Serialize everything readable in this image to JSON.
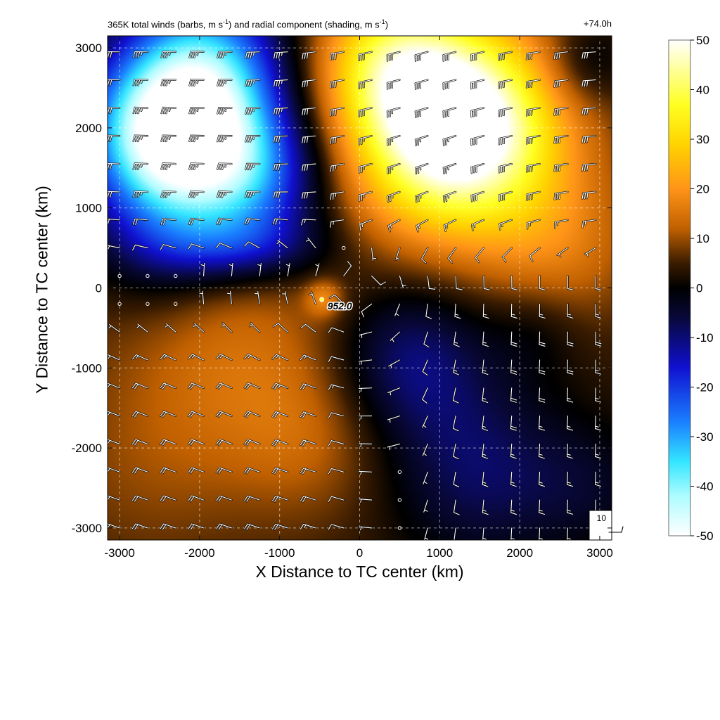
{
  "title": {
    "left_pre": "365K total winds (barbs, m s",
    "left_exp1": "-1",
    "left_mid": ") and radial component (shading, m s",
    "left_exp2": "-1",
    "left_post": ")",
    "right": "+74.0h"
  },
  "chart_data": {
    "type": "heatmap",
    "title": "365K total winds (barbs, m s-1) and radial component (shading, m s-1)",
    "valid_time": "+74.0h",
    "xlabel": "X Distance to TC center (km)",
    "ylabel": "Y Distance to TC center (km)",
    "xlim": [
      -3150,
      3150
    ],
    "ylim": [
      -3150,
      3150
    ],
    "xticks": [
      -3000,
      -2000,
      -1000,
      0,
      1000,
      2000,
      3000
    ],
    "yticks": [
      -3000,
      -2000,
      -1000,
      0,
      1000,
      2000,
      3000
    ],
    "xtick_labels": [
      "-3000",
      "-2000",
      "-1000",
      "0",
      "1000",
      "2000",
      "3000"
    ],
    "ytick_labels": [
      "-3000",
      "-2000",
      "-1000",
      "0",
      "1000",
      "2000",
      "3000"
    ],
    "grid": true,
    "colorbar": {
      "range": [
        -50,
        50
      ],
      "ticks": [
        50,
        40,
        30,
        20,
        10,
        0,
        -10,
        -20,
        -30,
        -40,
        -50
      ],
      "tick_labels": [
        "50",
        "40",
        "30",
        "20",
        "10",
        "0",
        "-10",
        "-20",
        "-30",
        "-40",
        "-50"
      ],
      "colors": [
        "#ffffff",
        "#aefcff",
        "#33e6ff",
        "#1a7fff",
        "#1010d0",
        "#08083a",
        "#000000",
        "#3a1c00",
        "#c06000",
        "#ff9418",
        "#ffd400",
        "#ffff22",
        "#ffffff"
      ],
      "color_stops": [
        -50,
        -42,
        -35,
        -27,
        -16,
        -6,
        0,
        5,
        12,
        20,
        29,
        37,
        50
      ]
    },
    "field_features": [
      {
        "label": "outflow maximum",
        "x": 1200,
        "y": 2000,
        "value": 50
      },
      {
        "label": "outflow maximum",
        "x": 350,
        "y": 2900,
        "value": 40
      },
      {
        "label": "inflow maximum",
        "x": -2500,
        "y": 1800,
        "value": -50
      },
      {
        "label": "inflow maximum",
        "x": -1900,
        "y": 2900,
        "value": -35
      },
      {
        "label": "inflow region",
        "x": 500,
        "y": -1000,
        "value": -13
      },
      {
        "label": "inflow region",
        "x": 1500,
        "y": -2200,
        "value": -13
      },
      {
        "label": "outflow region",
        "x": -1500,
        "y": -800,
        "value": 15
      },
      {
        "label": "outflow region",
        "x": 2500,
        "y": 600,
        "value": 15
      }
    ],
    "center_marker": {
      "label": "952.0",
      "x": -420,
      "y": -180
    },
    "barb_spacing_km": 350,
    "reference_barb": {
      "label": "10",
      "speed": 10
    }
  }
}
